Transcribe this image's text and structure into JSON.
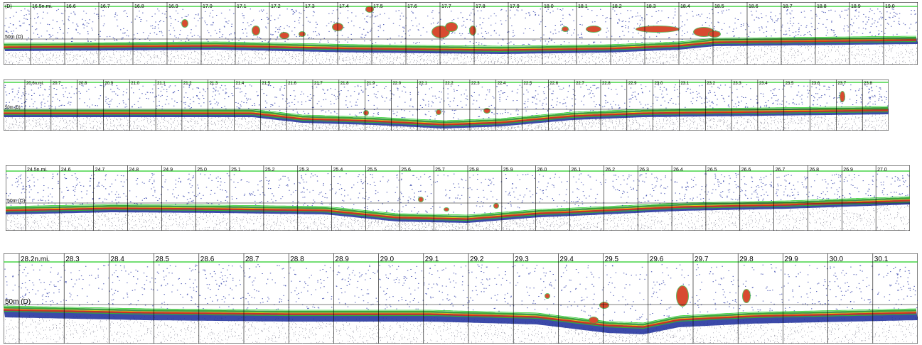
{
  "strips": [
    {
      "id": "strip-1",
      "panel_label": "(D)",
      "depth_label": "50m (D)",
      "distance_labels": [
        "16.5n.mi.",
        "16.6",
        "16.7",
        "16.8",
        "16.9",
        "17.0",
        "17.1",
        "17.2",
        "17.3",
        "17.4",
        "17.5",
        "17.6",
        "17.7",
        "17.8",
        "17.9",
        "18.0",
        "18.1",
        "18.2",
        "18.3",
        "18.4",
        "18.5",
        "18.6",
        "18.7",
        "18.8",
        "18.9",
        "19.0"
      ]
    },
    {
      "id": "strip-2",
      "panel_label": "",
      "depth_label": "50m (D)",
      "distance_labels": [
        "20.6n.mi.",
        "20.7",
        "20.8",
        "20.9",
        "21.0",
        "21.1",
        "21.2",
        "21.3",
        "21.4",
        "21.5",
        "21.6",
        "21.7",
        "21.8",
        "21.9",
        "22.0",
        "22.1",
        "22.2",
        "22.3",
        "22.4",
        "22.5",
        "22.6",
        "22.7",
        "22.8",
        "22.9",
        "23.0",
        "23.1",
        "23.2",
        "23.3",
        "23.4",
        "23.5",
        "23.6",
        "23.7",
        "23.8"
      ]
    },
    {
      "id": "strip-3",
      "panel_label": "",
      "depth_label": "50m (D)",
      "distance_labels": [
        "24.5n.mi.",
        "24.6",
        "24.7",
        "24.8",
        "24.9",
        "25.0",
        "25.1",
        "25.2",
        "25.3",
        "25.4",
        "25.5",
        "25.6",
        "25.7",
        "25.8",
        "25.9",
        "26.0",
        "26.1",
        "26.2",
        "26.3",
        "26.4",
        "26.5",
        "26.6",
        "26.7",
        "26.8",
        "26.9",
        "27.0"
      ]
    },
    {
      "id": "strip-4",
      "panel_label": "",
      "depth_label": "50m (D)",
      "distance_labels": [
        "28.2n.mi.",
        "28.3",
        "28.4",
        "28.5",
        "28.6",
        "28.7",
        "28.8",
        "28.9",
        "29.0",
        "29.1",
        "29.2",
        "29.3",
        "29.4",
        "29.5",
        "29.6",
        "29.7",
        "29.8",
        "29.9",
        "30.0",
        "30.1"
      ]
    }
  ],
  "colors": {
    "background": "#ffffff",
    "grid": "#000000",
    "surface_line": "#22cc22",
    "seabed_green": "#3aa83a",
    "seabed_red": "#cc3322",
    "seabed_yellow": "#d8c820",
    "seabed_blue": "#1a2a9a",
    "sub_bottom": "#9a9aa8",
    "school_red": "#d84a30",
    "plankton_blue": "#2a3aa8"
  }
}
